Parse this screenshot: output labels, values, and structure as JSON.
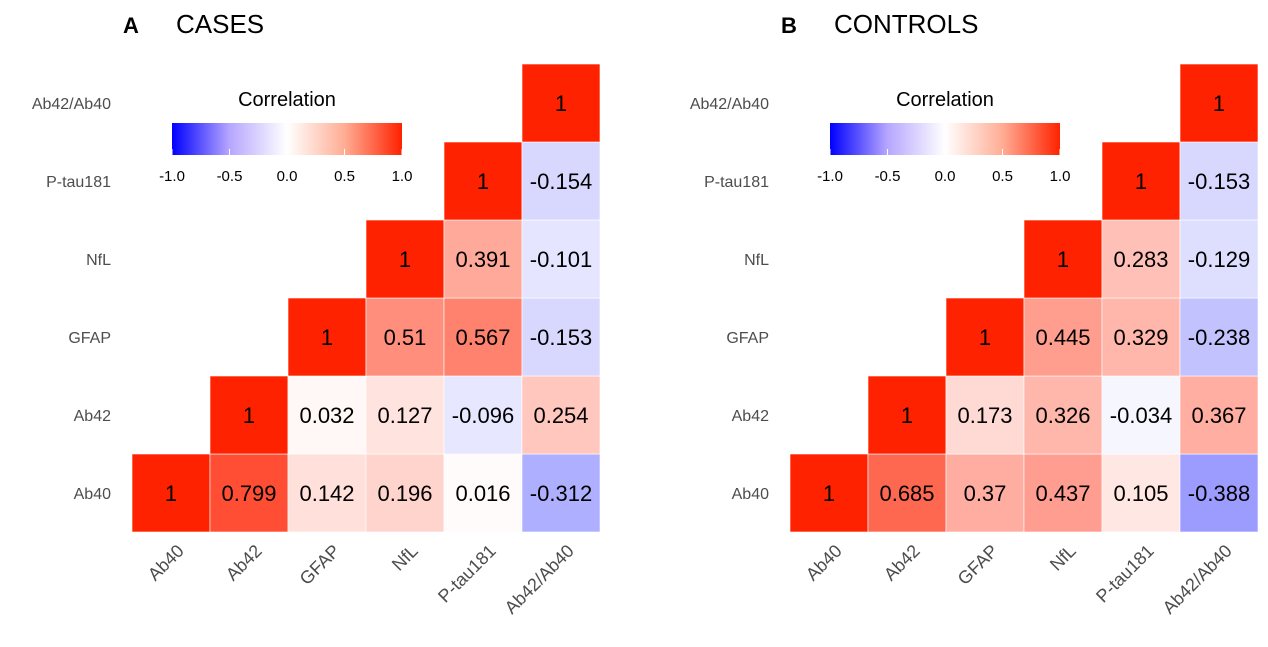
{
  "chart_data": [
    {
      "type": "heatmap",
      "panel_letter": "A",
      "title": "CASES",
      "variables": [
        "Ab40",
        "Ab42",
        "GFAP",
        "NfL",
        "P-tau181",
        "Ab42/Ab40"
      ],
      "matrix": [
        [
          1,
          0.799,
          0.142,
          0.196,
          0.016,
          -0.312
        ],
        [
          null,
          1,
          0.032,
          0.127,
          -0.096,
          0.254
        ],
        [
          null,
          null,
          1,
          0.51,
          0.567,
          -0.153
        ],
        [
          null,
          null,
          null,
          1,
          0.391,
          -0.101
        ],
        [
          null,
          null,
          null,
          null,
          1,
          -0.154
        ],
        [
          null,
          null,
          null,
          null,
          null,
          1
        ]
      ],
      "legend": {
        "title": "Correlation",
        "ticks": [
          "-1.0",
          "-0.5",
          "0.0",
          "0.5",
          "1.0"
        ],
        "range": [
          -1,
          1
        ],
        "colors": {
          "low": "#0000ff",
          "mid": "#ffffff",
          "high": "#ff2200"
        }
      }
    },
    {
      "type": "heatmap",
      "panel_letter": "B",
      "title": "CONTROLS",
      "variables": [
        "Ab40",
        "Ab42",
        "GFAP",
        "NfL",
        "P-tau181",
        "Ab42/Ab40"
      ],
      "matrix": [
        [
          1,
          0.685,
          0.37,
          0.437,
          0.105,
          -0.388
        ],
        [
          null,
          1,
          0.173,
          0.326,
          -0.034,
          0.367
        ],
        [
          null,
          null,
          1,
          0.445,
          0.329,
          -0.238
        ],
        [
          null,
          null,
          null,
          1,
          0.283,
          -0.129
        ],
        [
          null,
          null,
          null,
          null,
          1,
          -0.153
        ],
        [
          null,
          null,
          null,
          null,
          null,
          1
        ]
      ],
      "legend": {
        "title": "Correlation",
        "ticks": [
          "-1.0",
          "-0.5",
          "0.0",
          "0.5",
          "1.0"
        ],
        "range": [
          -1,
          1
        ],
        "colors": {
          "low": "#0000ff",
          "mid": "#ffffff",
          "high": "#ff2200"
        }
      }
    }
  ]
}
